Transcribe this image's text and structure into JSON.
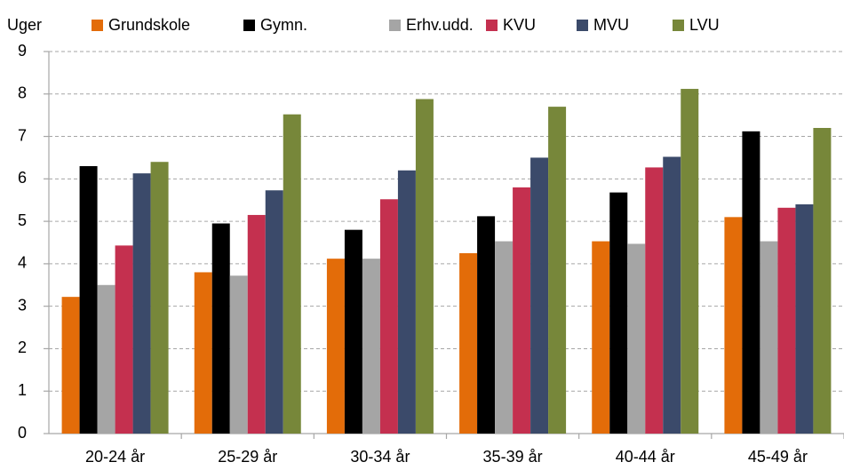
{
  "chart_data": {
    "type": "bar",
    "y_label": "Uger",
    "categories": [
      "20-24 år",
      "25-29 år",
      "30-34 år",
      "35-39 år",
      "40-44 år",
      "45-49 år"
    ],
    "series": [
      {
        "name": "Grundskole",
        "color": "#e36c09",
        "values": [
          3.22,
          3.8,
          4.12,
          4.25,
          4.53,
          5.1
        ]
      },
      {
        "name": "Gymn.",
        "color": "#000000",
        "values": [
          6.3,
          4.95,
          4.8,
          5.12,
          5.68,
          7.12
        ]
      },
      {
        "name": "Erhv.udd.",
        "color": "#a5a5a5",
        "values": [
          3.5,
          3.72,
          4.12,
          4.53,
          4.47,
          4.53
        ]
      },
      {
        "name": "KVU",
        "color": "#c4304f",
        "values": [
          4.43,
          5.15,
          5.52,
          5.8,
          6.27,
          5.32
        ]
      },
      {
        "name": "MVU",
        "color": "#3b4a6a",
        "values": [
          6.13,
          5.73,
          6.2,
          6.5,
          6.52,
          5.4
        ]
      },
      {
        "name": "LVU",
        "color": "#77873a",
        "values": [
          6.4,
          7.52,
          7.88,
          7.7,
          8.12,
          7.2
        ]
      }
    ],
    "ylim": [
      0,
      9
    ],
    "yticks": [
      0,
      1,
      2,
      3,
      4,
      5,
      6,
      7,
      8,
      9
    ],
    "grid": true,
    "legend": "top"
  }
}
